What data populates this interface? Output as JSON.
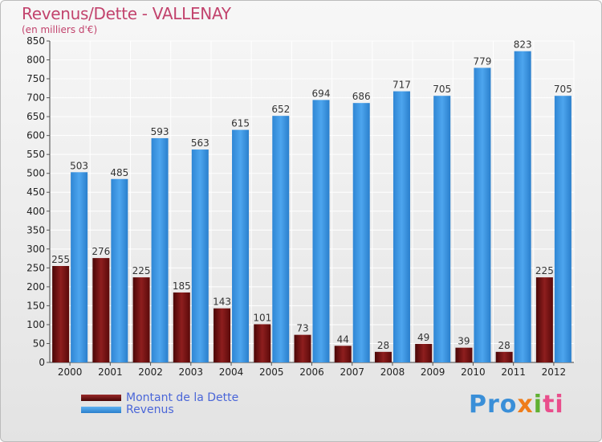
{
  "header": {
    "title": "Revenus/Dette - VALLENAY",
    "subtitle": "(en milliers d'€)"
  },
  "logo": {
    "text": "Proxiti",
    "colors": [
      "#3a8fd8",
      "#ef7d1a",
      "#60b032",
      "#e94e8c"
    ]
  },
  "chart_data": {
    "type": "bar",
    "title": "Revenus/Dette - VALLENAY",
    "subtitle": "(en milliers d'€)",
    "categories": [
      "2000",
      "2001",
      "2002",
      "2003",
      "2004",
      "2005",
      "2006",
      "2007",
      "2008",
      "2009",
      "2010",
      "2011",
      "2012"
    ],
    "series": [
      {
        "name": "Montant de la Dette",
        "color": "#7a1414",
        "values": [
          255,
          276,
          225,
          185,
          143,
          101,
          73,
          44,
          28,
          49,
          39,
          28,
          225
        ]
      },
      {
        "name": "Revenus",
        "color": "#3f9ae6",
        "values": [
          503,
          485,
          593,
          563,
          615,
          652,
          694,
          686,
          717,
          705,
          779,
          823,
          705
        ]
      }
    ],
    "ylim": [
      0,
      850
    ],
    "yticks": [
      0,
      50,
      100,
      150,
      200,
      250,
      300,
      350,
      400,
      450,
      500,
      550,
      600,
      650,
      700,
      750,
      800,
      850
    ],
    "grid": true,
    "legend_position": "bottom-left"
  }
}
